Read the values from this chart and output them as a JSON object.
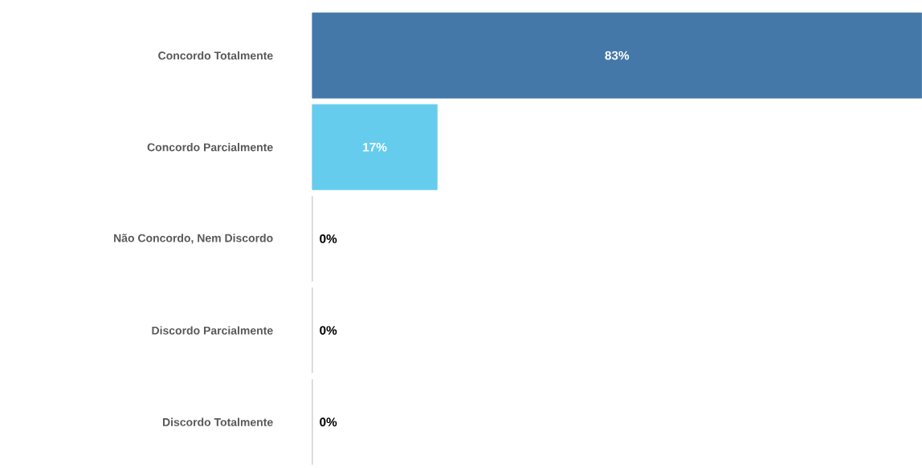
{
  "chart_data": {
    "type": "bar",
    "orientation": "horizontal",
    "categories": [
      "Concordo Totalmente",
      "Concordo Parcialmente",
      "Não Concordo, Nem Discordo",
      "Discordo Parcialmente",
      "Discordo Totalmente"
    ],
    "values": [
      83,
      17,
      0,
      0,
      0
    ],
    "value_labels": [
      "83%",
      "17%",
      "0%",
      "0%",
      "0%"
    ],
    "colors": [
      "#4478a9",
      "#66ccee",
      "#c8c8c8",
      "#c8c8c8",
      "#c8c8c8"
    ],
    "xlim": [
      0,
      83
    ],
    "tick_labels": "y"
  }
}
